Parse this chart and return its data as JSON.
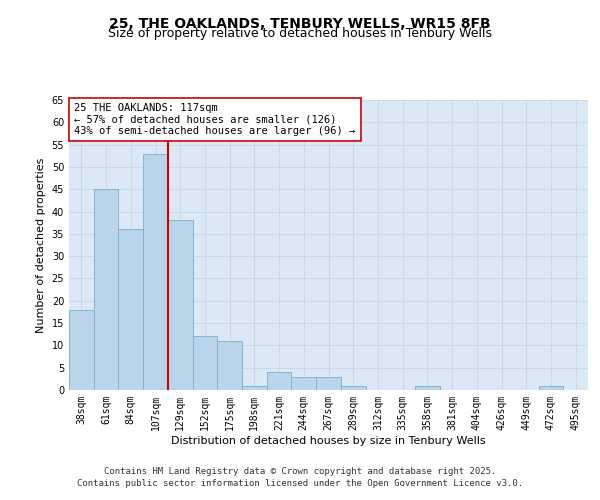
{
  "title_line1": "25, THE OAKLANDS, TENBURY WELLS, WR15 8FB",
  "title_line2": "Size of property relative to detached houses in Tenbury Wells",
  "xlabel": "Distribution of detached houses by size in Tenbury Wells",
  "ylabel": "Number of detached properties",
  "categories": [
    "38sqm",
    "61sqm",
    "84sqm",
    "107sqm",
    "129sqm",
    "152sqm",
    "175sqm",
    "198sqm",
    "221sqm",
    "244sqm",
    "267sqm",
    "289sqm",
    "312sqm",
    "335sqm",
    "358sqm",
    "381sqm",
    "404sqm",
    "426sqm",
    "449sqm",
    "472sqm",
    "495sqm"
  ],
  "values": [
    18,
    45,
    36,
    53,
    38,
    12,
    11,
    1,
    4,
    3,
    3,
    1,
    0,
    0,
    1,
    0,
    0,
    0,
    0,
    1,
    0
  ],
  "bar_color": "#bad4ea",
  "bar_edge_color": "#7aaed0",
  "vline_color": "#cc0000",
  "annotation_text": "25 THE OAKLANDS: 117sqm\n← 57% of detached houses are smaller (126)\n43% of semi-detached houses are larger (96) →",
  "annotation_box_color": "#ffffff",
  "annotation_box_edge": "#cc0000",
  "ylim": [
    0,
    65
  ],
  "yticks": [
    0,
    5,
    10,
    15,
    20,
    25,
    30,
    35,
    40,
    45,
    50,
    55,
    60,
    65
  ],
  "grid_color": "#c8d8e8",
  "background_color": "#dce8f5",
  "footer_text": "Contains HM Land Registry data © Crown copyright and database right 2025.\nContains public sector information licensed under the Open Government Licence v3.0.",
  "title_fontsize": 10,
  "subtitle_fontsize": 9,
  "axis_label_fontsize": 8,
  "tick_fontsize": 7,
  "annotation_fontsize": 7.5,
  "footer_fontsize": 6.5
}
